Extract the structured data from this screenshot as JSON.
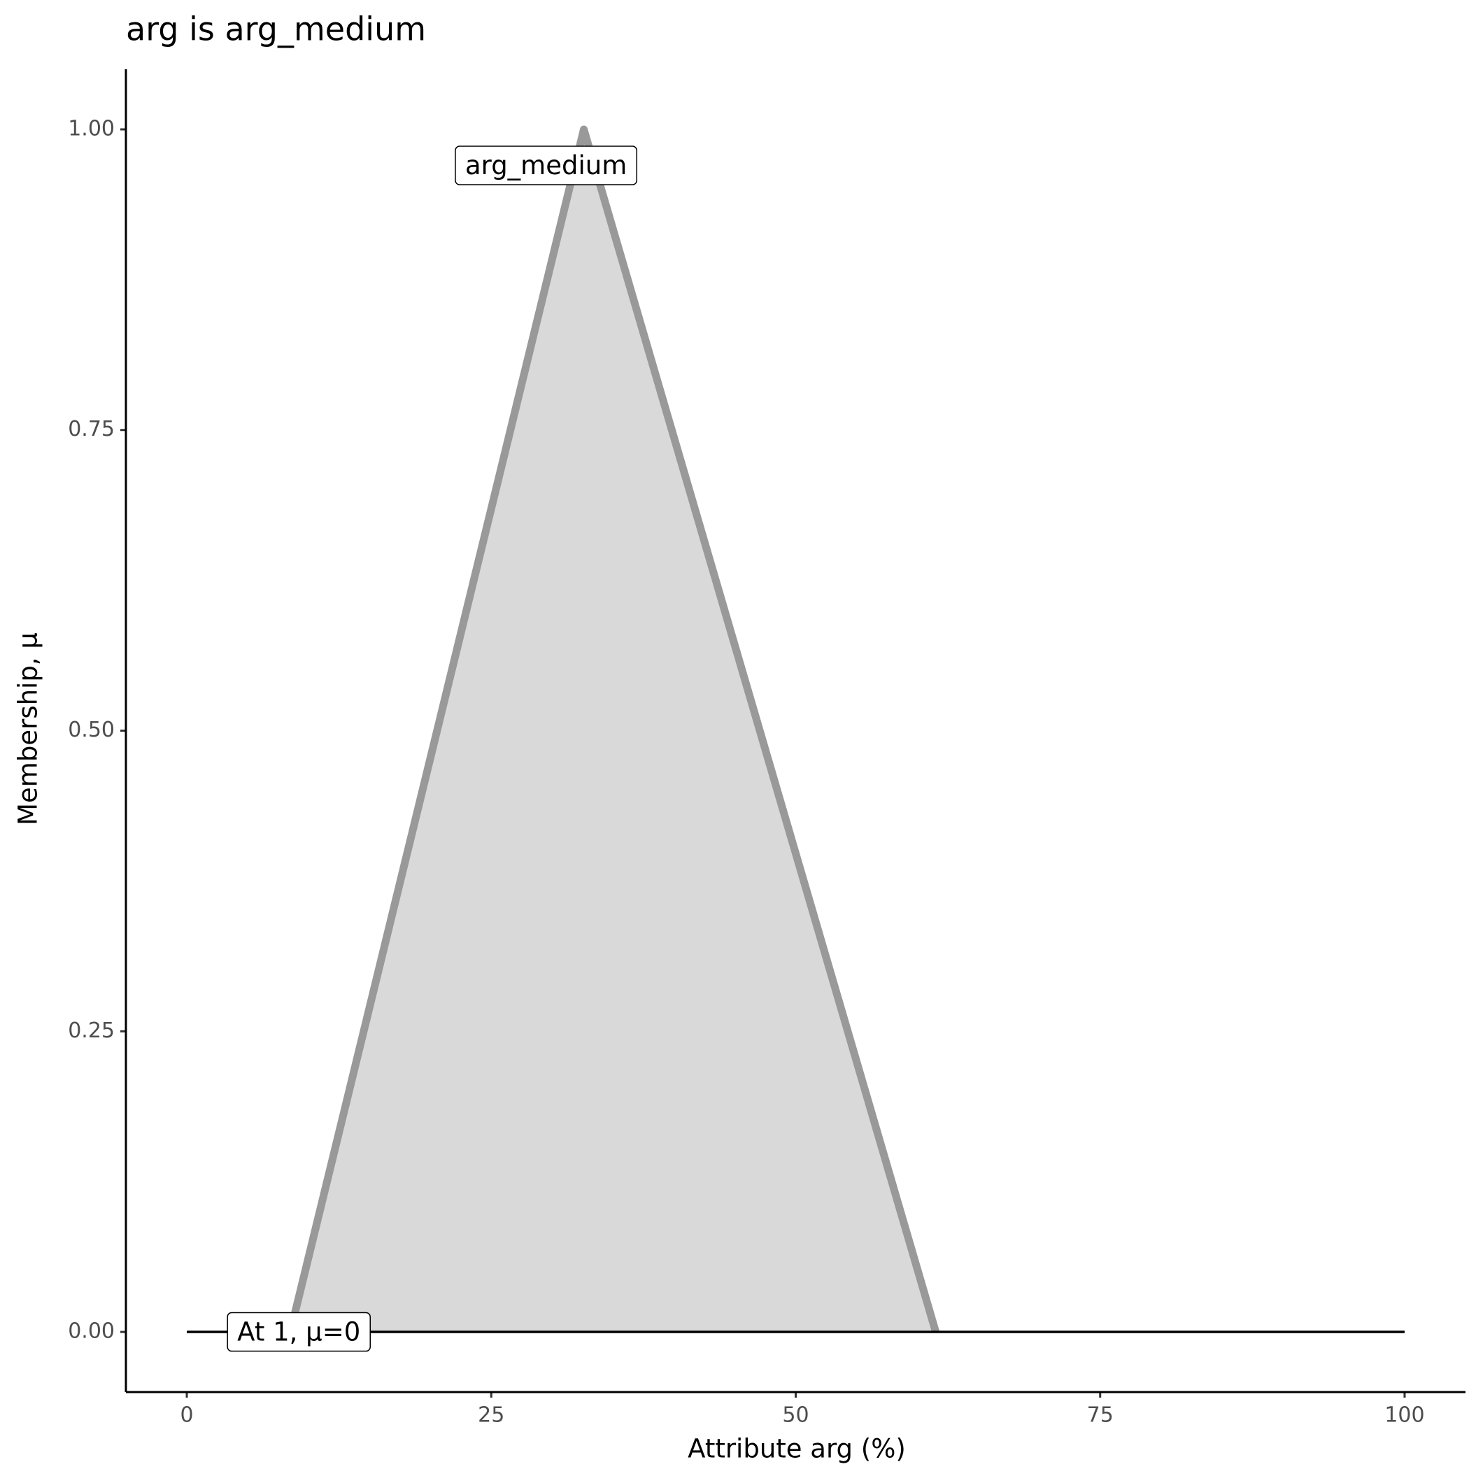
{
  "chart_data": {
    "type": "line",
    "title": "arg is arg_medium",
    "x_label": "Attribute arg (%)",
    "y_label": "Membership, μ",
    "xlim": [
      -5,
      105
    ],
    "ylim": [
      -0.05,
      1.05
    ],
    "xticks": [
      0,
      25,
      50,
      75,
      100
    ],
    "yticks": [
      {
        "value": 0,
        "label": "0.00"
      },
      {
        "value": 0.25,
        "label": "0.25"
      },
      {
        "value": 0.5,
        "label": "0.50"
      },
      {
        "value": 0.75,
        "label": "0.75"
      },
      {
        "value": 1,
        "label": "1.00"
      }
    ],
    "series": [
      {
        "color": "#999999",
        "fill": "#d9d9d9",
        "x": [
          8.5,
          32.6,
          61.5
        ],
        "values": [
          0,
          1,
          0
        ]
      },
      {
        "color": "#000000",
        "x": [
          0,
          100
        ],
        "values": [
          0,
          0
        ]
      }
    ],
    "annotations": [
      {
        "text": "arg_medium",
        "x": 29.5,
        "y": 0.97
      },
      {
        "text": "At 1, μ=0",
        "x": 9.2,
        "y": 0
      }
    ]
  }
}
